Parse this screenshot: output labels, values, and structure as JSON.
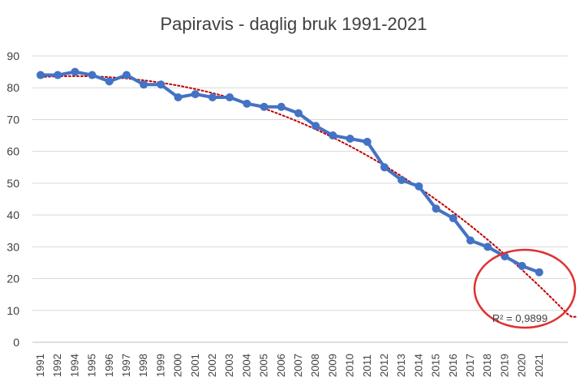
{
  "chart_data": {
    "type": "line",
    "title": "Papiravis - daglig bruk 1991-2021",
    "xlabel": "",
    "ylabel": "",
    "ylim": [
      0,
      90
    ],
    "yticks": [
      0,
      10,
      20,
      30,
      40,
      50,
      60,
      70,
      80,
      90
    ],
    "grid": true,
    "legend": "none",
    "categories": [
      "1991",
      "1992",
      "1994",
      "1995",
      "1996",
      "1997",
      "1998",
      "1999",
      "2000",
      "2001",
      "2002",
      "2003",
      "2004",
      "2005",
      "2006",
      "2007",
      "2008",
      "2009",
      "2010",
      "2011",
      "2012",
      "2013",
      "2014",
      "2015",
      "2016",
      "2017",
      "2018",
      "2019",
      "2020",
      "2021"
    ],
    "series": [
      {
        "values": [
          84,
          84,
          85,
          84,
          82,
          84,
          81,
          81,
          77,
          78,
          77,
          77,
          75,
          74,
          74,
          72,
          68,
          65,
          64,
          63,
          55,
          51,
          49,
          42,
          39,
          32,
          30,
          27,
          24,
          22
        ],
        "color": "#4472c4"
      }
    ],
    "trendline": {
      "kind": "polynomial",
      "color": "#c00000",
      "style": "dotted",
      "end_value": 8
    },
    "annotation": {
      "text": "R² = 0,9899",
      "circle_color": "#e03030"
    },
    "colors": {
      "grid": "#d9d9d9",
      "axis": "#bfbfbf",
      "text": "#404040"
    }
  }
}
